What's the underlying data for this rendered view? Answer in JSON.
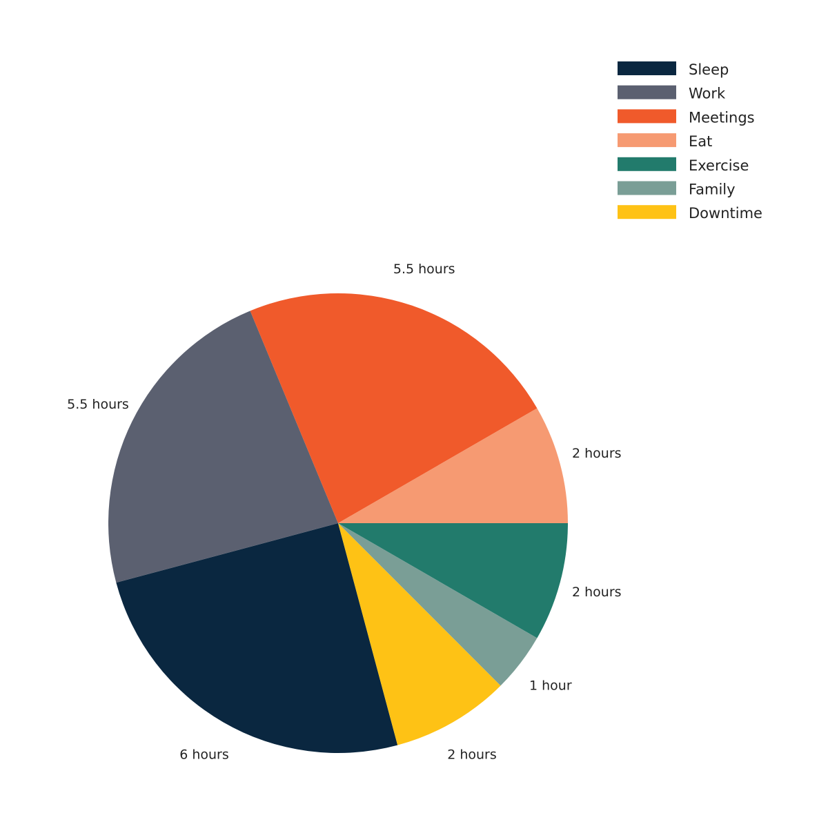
{
  "chart_data": {
    "type": "pie",
    "categories": [
      "Sleep",
      "Work",
      "Meetings",
      "Eat",
      "Exercise",
      "Family",
      "Downtime"
    ],
    "values": [
      6,
      5.5,
      5.5,
      2,
      2,
      1,
      2
    ],
    "value_labels": [
      "6 hours",
      "5.5 hours",
      "5.5 hours",
      "2 hours",
      "2 hours",
      "1 hour",
      "2 hours"
    ],
    "colors": [
      "#0a2740",
      "#5b6070",
      "#f05a2b",
      "#f69a72",
      "#227b6c",
      "#7a9e96",
      "#fec215"
    ],
    "legend": "top-right"
  }
}
